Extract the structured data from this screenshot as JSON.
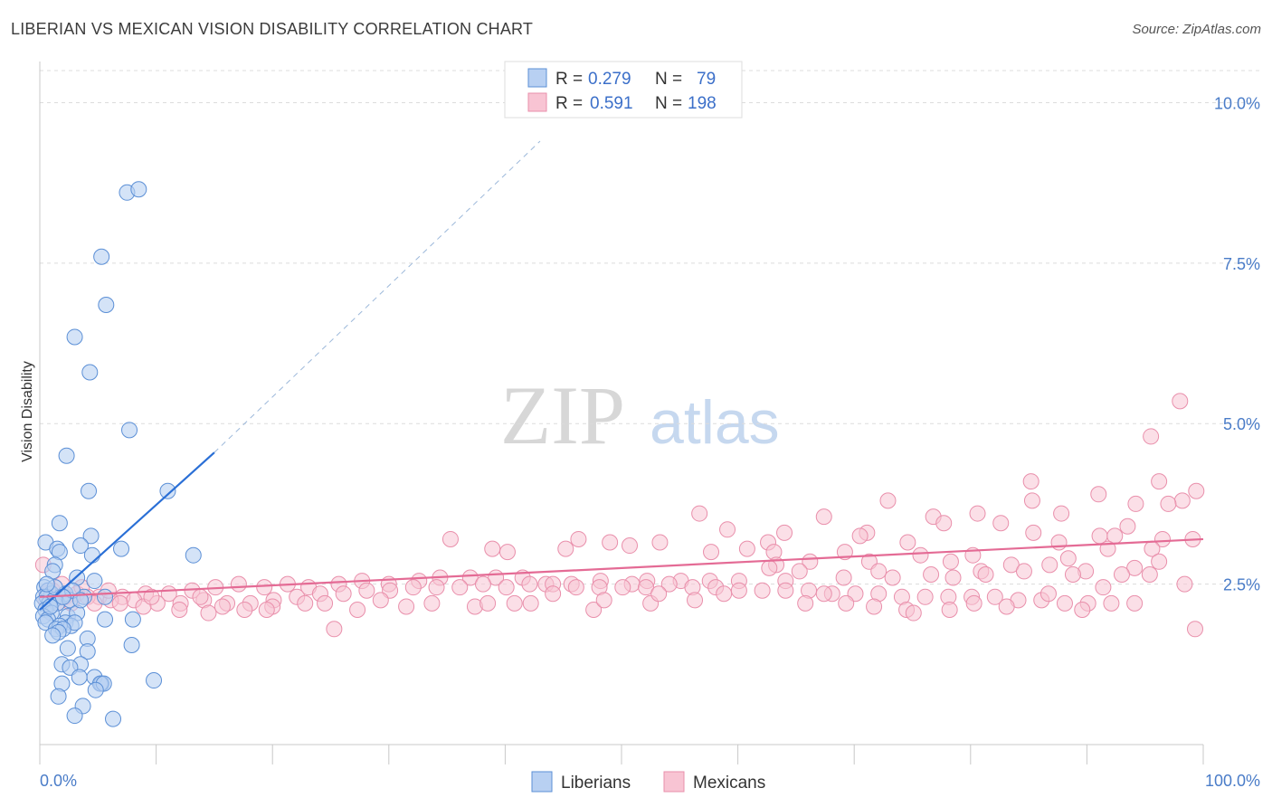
{
  "title": "LIBERIAN VS MEXICAN VISION DISABILITY CORRELATION CHART",
  "source": "Source: ZipAtlas.com",
  "watermark": {
    "zip": "ZIP",
    "atlas": "atlas"
  },
  "legend": {
    "r_label": "R =",
    "n_label": "N =",
    "rows": [
      {
        "r": "0.279",
        "n": "79"
      },
      {
        "r": "0.591",
        "n": "198"
      }
    ]
  },
  "chart_data": {
    "type": "scatter",
    "title": "LIBERIAN VS MEXICAN VISION DISABILITY CORRELATION CHART",
    "xlabel": "",
    "ylabel": "Vision Disability",
    "xlim": [
      0,
      100
    ],
    "ylim": [
      0,
      10.5
    ],
    "x_tick_labels": [
      "0.0%",
      "100.0%"
    ],
    "y_ticks": [
      2.5,
      5.0,
      7.5,
      10.0
    ],
    "y_tick_labels": [
      "2.5%",
      "5.0%",
      "7.5%",
      "10.0%"
    ],
    "grid": "horizontal dashed",
    "legend_position": "top-center",
    "colors": {
      "liberians_fill": "#b8d0f2",
      "liberians_stroke": "#5b8fd6",
      "liberians_line": "#2a6fd6",
      "mexicans_fill": "#f8c4d3",
      "mexicans_stroke": "#e98fab",
      "mexicans_line": "#e46b95",
      "axis_text": "#4a7cc8"
    },
    "series": [
      {
        "name": "Liberians",
        "r": 0.279,
        "n": 79,
        "trend": {
          "x0": 0,
          "y0": 2.1,
          "x1": 15,
          "y1": 4.55,
          "extend_to_x": 43,
          "extend_to_y": 9.4
        },
        "points": [
          [
            7.5,
            8.6
          ],
          [
            8.5,
            8.65
          ],
          [
            5.3,
            7.6
          ],
          [
            5.7,
            6.85
          ],
          [
            3.0,
            6.35
          ],
          [
            4.3,
            5.8
          ],
          [
            7.7,
            4.9
          ],
          [
            2.3,
            4.5
          ],
          [
            4.2,
            3.95
          ],
          [
            11.0,
            3.95
          ],
          [
            1.7,
            3.45
          ],
          [
            4.4,
            3.25
          ],
          [
            0.5,
            3.15
          ],
          [
            1.5,
            3.05
          ],
          [
            1.7,
            3.0
          ],
          [
            3.5,
            3.1
          ],
          [
            7.0,
            3.05
          ],
          [
            13.2,
            2.95
          ],
          [
            4.5,
            2.95
          ],
          [
            1.3,
            2.8
          ],
          [
            1.1,
            2.7
          ],
          [
            3.2,
            2.6
          ],
          [
            4.7,
            2.55
          ],
          [
            0.4,
            2.45
          ],
          [
            0.7,
            2.4
          ],
          [
            1.0,
            2.35
          ],
          [
            1.8,
            2.3
          ],
          [
            2.2,
            2.35
          ],
          [
            0.3,
            2.3
          ],
          [
            0.6,
            2.3
          ],
          [
            1.2,
            2.25
          ],
          [
            0.8,
            2.2
          ],
          [
            0.2,
            2.2
          ],
          [
            1.5,
            2.2
          ],
          [
            2.6,
            2.25
          ],
          [
            3.8,
            2.3
          ],
          [
            5.6,
            2.3
          ],
          [
            0.5,
            2.1
          ],
          [
            1.0,
            2.05
          ],
          [
            0.3,
            2.0
          ],
          [
            2.4,
            2.0
          ],
          [
            3.2,
            2.05
          ],
          [
            0.7,
            1.95
          ],
          [
            5.6,
            1.95
          ],
          [
            8.0,
            1.95
          ],
          [
            0.5,
            1.9
          ],
          [
            2.2,
            1.9
          ],
          [
            2.7,
            1.85
          ],
          [
            3.0,
            1.9
          ],
          [
            1.7,
            1.85
          ],
          [
            1.4,
            1.8
          ],
          [
            2.0,
            1.8
          ],
          [
            1.6,
            1.75
          ],
          [
            1.1,
            1.7
          ],
          [
            4.1,
            1.65
          ],
          [
            7.9,
            1.55
          ],
          [
            2.4,
            1.5
          ],
          [
            4.1,
            1.45
          ],
          [
            1.9,
            1.25
          ],
          [
            3.5,
            1.25
          ],
          [
            2.6,
            1.2
          ],
          [
            4.7,
            1.05
          ],
          [
            3.4,
            1.05
          ],
          [
            9.8,
            1.0
          ],
          [
            5.3,
            0.95
          ],
          [
            5.2,
            0.95
          ],
          [
            1.9,
            0.95
          ],
          [
            5.5,
            0.95
          ],
          [
            4.8,
            0.85
          ],
          [
            1.6,
            0.75
          ],
          [
            3.7,
            0.6
          ],
          [
            3.0,
            0.45
          ],
          [
            6.3,
            0.4
          ],
          [
            2.8,
            2.4
          ],
          [
            1.3,
            2.45
          ],
          [
            0.9,
            2.15
          ],
          [
            2.0,
            2.3
          ],
          [
            3.5,
            2.25
          ],
          [
            0.6,
            2.5
          ]
        ]
      },
      {
        "name": "Mexicans",
        "r": 0.591,
        "n": 198,
        "trend": {
          "x0": 0,
          "y0": 2.3,
          "x1": 100,
          "y1": 3.2
        },
        "points": [
          [
            98.0,
            5.35
          ],
          [
            95.5,
            4.8
          ],
          [
            96.2,
            4.1
          ],
          [
            85.2,
            4.1
          ],
          [
            99.4,
            3.95
          ],
          [
            98.2,
            3.8
          ],
          [
            91.0,
            3.9
          ],
          [
            94.2,
            3.75
          ],
          [
            97.0,
            3.75
          ],
          [
            85.3,
            3.8
          ],
          [
            72.9,
            3.8
          ],
          [
            87.8,
            3.6
          ],
          [
            76.8,
            3.55
          ],
          [
            80.6,
            3.6
          ],
          [
            67.4,
            3.55
          ],
          [
            82.6,
            3.45
          ],
          [
            85.4,
            3.3
          ],
          [
            77.7,
            3.45
          ],
          [
            93.5,
            3.4
          ],
          [
            56.7,
            3.6
          ],
          [
            59.1,
            3.35
          ],
          [
            64.0,
            3.3
          ],
          [
            71.1,
            3.3
          ],
          [
            91.1,
            3.25
          ],
          [
            96.5,
            3.2
          ],
          [
            99.1,
            3.2
          ],
          [
            92.4,
            3.25
          ],
          [
            95.6,
            3.05
          ],
          [
            70.5,
            3.25
          ],
          [
            62.6,
            3.15
          ],
          [
            60.8,
            3.05
          ],
          [
            74.6,
            3.15
          ],
          [
            87.6,
            3.15
          ],
          [
            91.8,
            3.05
          ],
          [
            35.3,
            3.2
          ],
          [
            46.3,
            3.2
          ],
          [
            49.0,
            3.15
          ],
          [
            50.7,
            3.1
          ],
          [
            53.3,
            3.15
          ],
          [
            38.9,
            3.05
          ],
          [
            40.2,
            3.0
          ],
          [
            45.2,
            3.05
          ],
          [
            57.7,
            3.0
          ],
          [
            63.1,
            3.0
          ],
          [
            69.2,
            3.0
          ],
          [
            75.7,
            2.95
          ],
          [
            80.2,
            2.95
          ],
          [
            88.4,
            2.9
          ],
          [
            63.3,
            2.8
          ],
          [
            66.2,
            2.85
          ],
          [
            71.3,
            2.85
          ],
          [
            78.3,
            2.85
          ],
          [
            83.5,
            2.8
          ],
          [
            86.8,
            2.8
          ],
          [
            96.2,
            2.85
          ],
          [
            62.7,
            2.75
          ],
          [
            65.3,
            2.7
          ],
          [
            72.1,
            2.7
          ],
          [
            80.9,
            2.7
          ],
          [
            84.6,
            2.7
          ],
          [
            89.9,
            2.7
          ],
          [
            94.1,
            2.75
          ],
          [
            93.0,
            2.65
          ],
          [
            88.8,
            2.65
          ],
          [
            81.3,
            2.65
          ],
          [
            76.6,
            2.65
          ],
          [
            78.5,
            2.6
          ],
          [
            73.3,
            2.6
          ],
          [
            69.1,
            2.6
          ],
          [
            64.1,
            2.55
          ],
          [
            60.1,
            2.55
          ],
          [
            57.6,
            2.55
          ],
          [
            55.1,
            2.55
          ],
          [
            52.2,
            2.55
          ],
          [
            50.9,
            2.5
          ],
          [
            48.2,
            2.55
          ],
          [
            45.7,
            2.5
          ],
          [
            43.5,
            2.5
          ],
          [
            41.5,
            2.6
          ],
          [
            39.2,
            2.6
          ],
          [
            37.0,
            2.6
          ],
          [
            34.4,
            2.6
          ],
          [
            32.6,
            2.55
          ],
          [
            30.0,
            2.5
          ],
          [
            27.7,
            2.55
          ],
          [
            25.7,
            2.5
          ],
          [
            23.1,
            2.45
          ],
          [
            21.3,
            2.5
          ],
          [
            19.3,
            2.45
          ],
          [
            17.1,
            2.5
          ],
          [
            15.1,
            2.45
          ],
          [
            13.1,
            2.4
          ],
          [
            11.1,
            2.35
          ],
          [
            9.1,
            2.35
          ],
          [
            7.1,
            2.3
          ],
          [
            5.1,
            2.3
          ],
          [
            3.2,
            2.35
          ],
          [
            1.1,
            2.4
          ],
          [
            0.5,
            2.25
          ],
          [
            2.2,
            2.3
          ],
          [
            4.1,
            2.3
          ],
          [
            6.1,
            2.25
          ],
          [
            8.1,
            2.25
          ],
          [
            10.1,
            2.2
          ],
          [
            12.1,
            2.2
          ],
          [
            14.1,
            2.25
          ],
          [
            16.1,
            2.2
          ],
          [
            18.1,
            2.2
          ],
          [
            20.1,
            2.25
          ],
          [
            22.1,
            2.3
          ],
          [
            24.1,
            2.35
          ],
          [
            26.1,
            2.35
          ],
          [
            28.1,
            2.4
          ],
          [
            30.1,
            2.4
          ],
          [
            32.1,
            2.45
          ],
          [
            34.1,
            2.45
          ],
          [
            36.1,
            2.45
          ],
          [
            38.1,
            2.5
          ],
          [
            40.1,
            2.45
          ],
          [
            42.1,
            2.5
          ],
          [
            44.1,
            2.5
          ],
          [
            46.1,
            2.45
          ],
          [
            48.1,
            2.45
          ],
          [
            50.1,
            2.45
          ],
          [
            52.1,
            2.45
          ],
          [
            54.1,
            2.5
          ],
          [
            56.1,
            2.45
          ],
          [
            58.1,
            2.45
          ],
          [
            60.1,
            2.4
          ],
          [
            62.1,
            2.4
          ],
          [
            64.1,
            2.4
          ],
          [
            66.1,
            2.4
          ],
          [
            68.1,
            2.35
          ],
          [
            70.1,
            2.35
          ],
          [
            72.1,
            2.35
          ],
          [
            74.1,
            2.3
          ],
          [
            76.1,
            2.3
          ],
          [
            78.1,
            2.3
          ],
          [
            80.1,
            2.3
          ],
          [
            82.1,
            2.3
          ],
          [
            84.1,
            2.25
          ],
          [
            86.1,
            2.25
          ],
          [
            88.1,
            2.2
          ],
          [
            90.1,
            2.2
          ],
          [
            92.1,
            2.2
          ],
          [
            94.1,
            2.2
          ],
          [
            42.2,
            2.2
          ],
          [
            37.4,
            2.15
          ],
          [
            31.5,
            2.15
          ],
          [
            24.5,
            2.2
          ],
          [
            20.0,
            2.15
          ],
          [
            15.7,
            2.15
          ],
          [
            12.0,
            2.1
          ],
          [
            8.9,
            2.15
          ],
          [
            4.7,
            2.2
          ],
          [
            2.7,
            2.2
          ],
          [
            1.5,
            2.2
          ],
          [
            0.3,
            2.8
          ],
          [
            0.8,
            2.4
          ],
          [
            1.9,
            2.5
          ],
          [
            3.6,
            2.45
          ],
          [
            5.9,
            2.4
          ],
          [
            0.6,
            2.35
          ],
          [
            6.9,
            2.2
          ],
          [
            9.6,
            2.3
          ],
          [
            13.8,
            2.3
          ],
          [
            17.6,
            2.1
          ],
          [
            19.5,
            2.1
          ],
          [
            22.8,
            2.2
          ],
          [
            27.3,
            2.1
          ],
          [
            29.3,
            2.25
          ],
          [
            33.7,
            2.2
          ],
          [
            38.5,
            2.2
          ],
          [
            47.6,
            2.1
          ],
          [
            52.5,
            2.2
          ],
          [
            56.3,
            2.25
          ],
          [
            65.8,
            2.2
          ],
          [
            69.3,
            2.2
          ],
          [
            74.5,
            2.1
          ],
          [
            78.2,
            2.1
          ],
          [
            83.1,
            2.15
          ],
          [
            89.6,
            2.1
          ],
          [
            99.3,
            1.8
          ],
          [
            14.5,
            2.05
          ],
          [
            25.3,
            1.8
          ],
          [
            40.8,
            2.2
          ],
          [
            44.1,
            2.35
          ],
          [
            48.5,
            2.25
          ],
          [
            53.2,
            2.35
          ],
          [
            58.8,
            2.35
          ],
          [
            67.4,
            2.35
          ],
          [
            71.7,
            2.15
          ],
          [
            75.1,
            2.05
          ],
          [
            80.3,
            2.2
          ],
          [
            86.7,
            2.35
          ],
          [
            91.4,
            2.45
          ],
          [
            95.4,
            2.65
          ],
          [
            98.4,
            2.5
          ]
        ]
      }
    ]
  },
  "bottom_legend": [
    "Liberians",
    "Mexicans"
  ]
}
